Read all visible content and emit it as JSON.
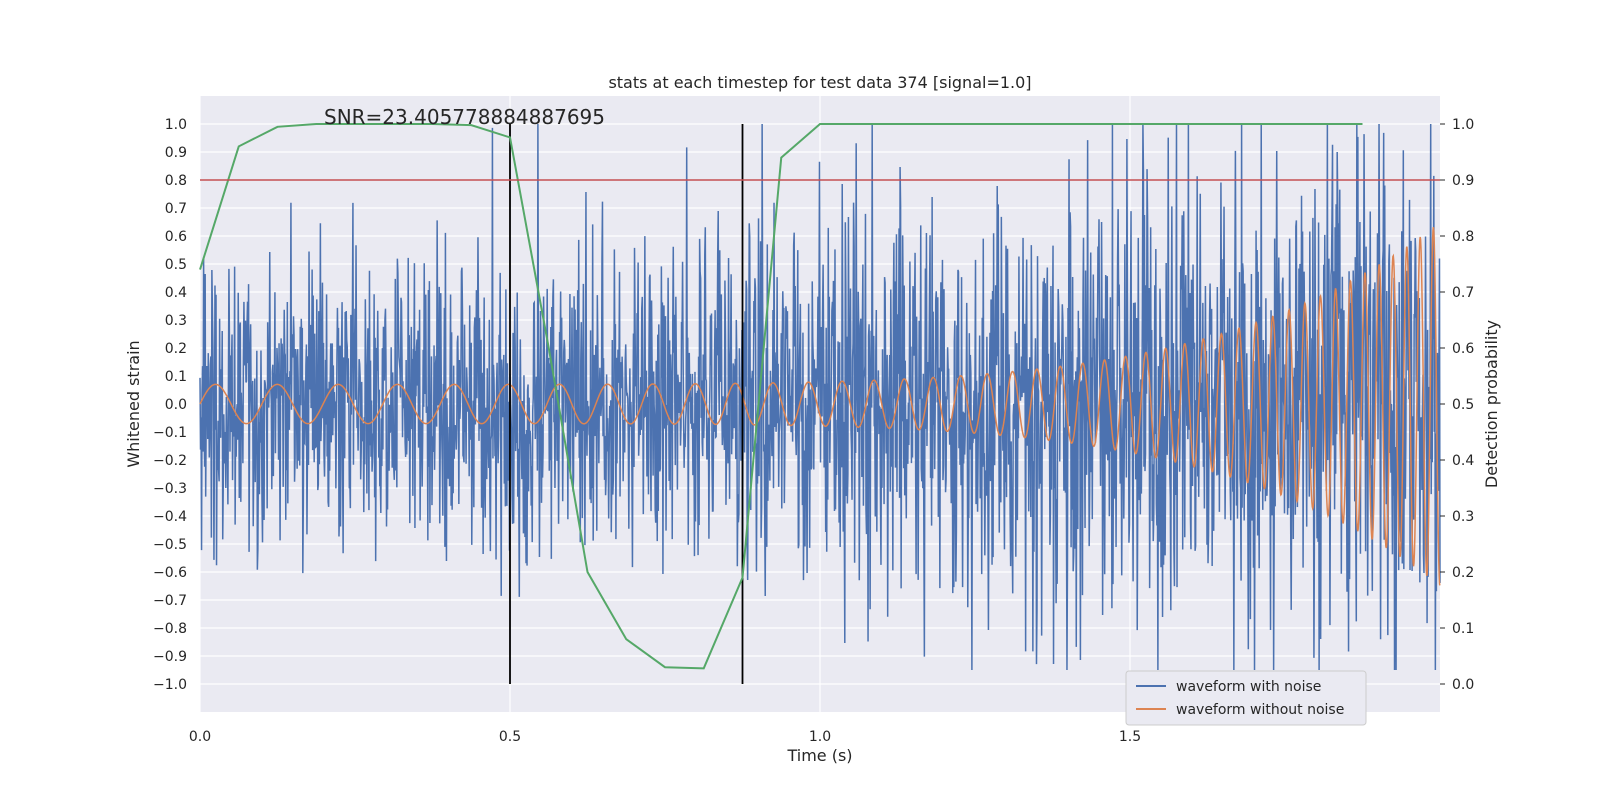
{
  "chart_data": {
    "type": "line",
    "title": "stats at each timestep for test data 374 [signal=1.0]",
    "xlabel": "Time (s)",
    "ylabel": "Whitened strain",
    "ylabel_right": "Detection probability",
    "annotation": "SNR=23.405778884887695",
    "xlim": [
      0.0,
      2.0
    ],
    "ylim": [
      -1.1,
      1.1
    ],
    "ylim_right": [
      -0.05,
      1.05
    ],
    "grid": true,
    "legend_placement": "lower-right",
    "x_ticks": [
      "0.0",
      "0.5",
      "1.0",
      "1.5"
    ],
    "x_tick_values": [
      0.0,
      0.5,
      1.0,
      1.5
    ],
    "y_ticks": [
      "1.0",
      "0.9",
      "0.8",
      "0.7",
      "0.6",
      "0.5",
      "0.4",
      "0.3",
      "0.2",
      "0.1",
      "0.0",
      "−0.1",
      "−0.2",
      "−0.3",
      "−0.4",
      "−0.5",
      "−0.6",
      "−0.7",
      "−0.8",
      "−0.9",
      "−1.0"
    ],
    "y_tick_values": [
      1.0,
      0.9,
      0.8,
      0.7,
      0.6,
      0.5,
      0.4,
      0.3,
      0.2,
      0.1,
      0.0,
      -0.1,
      -0.2,
      -0.3,
      -0.4,
      -0.5,
      -0.6,
      -0.7,
      -0.8,
      -0.9,
      -1.0
    ],
    "y_right_ticks": [
      "1.0",
      "0.9",
      "0.8",
      "0.7",
      "0.6",
      "0.5",
      "0.4",
      "0.3",
      "0.2",
      "0.1",
      "0.0"
    ],
    "y_right_tick_values": [
      1.0,
      0.9,
      0.8,
      0.7,
      0.6,
      0.5,
      0.4,
      0.3,
      0.2,
      0.1,
      0.0
    ],
    "threshold": {
      "value": 0.9,
      "axis": "right",
      "color": "#c44e52"
    },
    "vertical_markers": {
      "x": [
        0.5,
        0.875
      ],
      "color": "#000000"
    },
    "series": [
      {
        "name": "waveform with noise",
        "color": "#4c72b0",
        "axis": "left",
        "style": "noisy",
        "x_range": [
          0.0,
          2.0
        ],
        "approx_amplitude": 0.3,
        "approx_extrema": [
          -0.95,
          1.0
        ]
      },
      {
        "name": "waveform without noise",
        "color": "#dd8452",
        "axis": "left",
        "style": "chirp",
        "x_range": [
          0.0,
          2.0
        ],
        "amplitude_start": 0.07,
        "amplitude_end": 0.65
      },
      {
        "name": "",
        "color": "#55a868",
        "axis": "right",
        "x": [
          0.0,
          0.0625,
          0.125,
          0.1875,
          0.25,
          0.3125,
          0.375,
          0.4375,
          0.5,
          0.5625,
          0.625,
          0.6875,
          0.75,
          0.8125,
          0.875,
          0.9375,
          1.0,
          1.0625,
          1.125,
          1.25,
          1.5,
          1.75,
          1.875
        ],
        "values": [
          0.74,
          0.96,
          0.995,
          1.0,
          1.0,
          1.0,
          1.0,
          0.998,
          0.976,
          0.6,
          0.2,
          0.08,
          0.03,
          0.028,
          0.19,
          0.94,
          1.0,
          1.0,
          1.0,
          1.0,
          1.0,
          1.0,
          1.0
        ]
      }
    ]
  }
}
